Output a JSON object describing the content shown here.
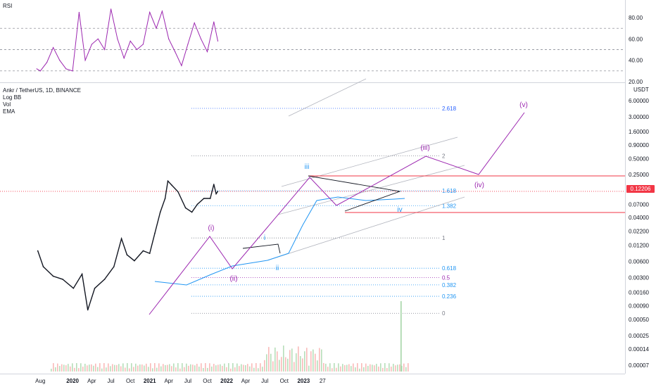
{
  "rsi_pane": {
    "title": "RSI",
    "ticks": [
      "80.00",
      "60.00",
      "40.00",
      "20.00"
    ]
  },
  "legend": {
    "symbol": "Ankr / TetherUS, 1D, BINANCE",
    "indicators": [
      "Log BB",
      "Vol",
      "EMA"
    ]
  },
  "price_axis": {
    "unit": "USDT",
    "current_price": "0.12206",
    "current_price_color": "#f23645"
  },
  "colors": {
    "fib_blue": "#2962ff",
    "fib_teal": "#089981",
    "wave_purple": "#9c27b0",
    "wave_blue": "#2196f3",
    "rsi_line": "#9c27b0",
    "resistance": "#f23645",
    "ema": "#2196f3"
  },
  "chart_data": [
    {
      "type": "line",
      "title": "RSI",
      "ylim": [
        20,
        100
      ],
      "levels": [
        70,
        50,
        30
      ],
      "x": [
        "2019-07-15",
        "2019-08",
        "2019-09",
        "2019-10",
        "2019-11",
        "2019-12",
        "2020-01",
        "2020-02",
        "2020-03",
        "2020-04",
        "2020-05",
        "2020-06",
        "2020-07",
        "2020-08",
        "2020-09",
        "2020-10",
        "2020-11",
        "2020-12",
        "2021-01",
        "2021-02",
        "2021-03",
        "2021-04",
        "2021-05",
        "2021-06",
        "2021-07",
        "2021-08",
        "2021-09",
        "2021-10",
        "2021-11",
        "2021-11-20"
      ],
      "values": [
        32,
        30,
        38,
        52,
        40,
        32,
        30,
        85,
        40,
        55,
        60,
        50,
        88,
        60,
        42,
        58,
        50,
        55,
        85,
        70,
        86,
        60,
        48,
        35,
        55,
        75,
        60,
        48,
        76,
        58
      ]
    },
    {
      "type": "line",
      "title": "Ankr / TetherUS, 1D, BINANCE",
      "scale": "log",
      "ylabel": "USDT",
      "y_ticks": [
        "6.00000",
        "3.00000",
        "1.60000",
        "0.90000",
        "0.50000",
        "0.25000",
        "0.12206",
        "0.07000",
        "0.04000",
        "0.02200",
        "0.01200",
        "0.00600",
        "0.00300",
        "0.00160",
        "0.00090",
        "0.00050",
        "0.00025",
        "0.00014",
        "0.00007"
      ],
      "x_ticks": [
        "Aug",
        "2020",
        "Apr",
        "Jul",
        "Oct",
        "2021",
        "Apr",
        "Jul",
        "Oct",
        "2022",
        "Apr",
        "Jul",
        "Oct",
        "2023",
        "27"
      ],
      "x": [
        "2019-07-20",
        "2019-08-15",
        "2019-10-01",
        "2019-11-15",
        "2020-01-05",
        "2020-02-15",
        "2020-03-13",
        "2020-04-15",
        "2020-06-01",
        "2020-07-15",
        "2020-08-20",
        "2020-09-15",
        "2020-10-20",
        "2020-12-01",
        "2021-01-01",
        "2021-01-25",
        "2021-02-20",
        "2021-03-15",
        "2021-03-28",
        "2021-04-15",
        "2021-05-15",
        "2021-06-20",
        "2021-07-20",
        "2021-08-15",
        "2021-09-15",
        "2021-10-15",
        "2021-11-01",
        "2021-11-12",
        "2021-11-20"
      ],
      "values": [
        0.0095,
        0.0048,
        0.0032,
        0.0028,
        0.0019,
        0.0035,
        0.00075,
        0.0019,
        0.0028,
        0.0048,
        0.016,
        0.008,
        0.0062,
        0.0095,
        0.0085,
        0.02,
        0.05,
        0.09,
        0.19,
        0.16,
        0.12,
        0.06,
        0.05,
        0.07,
        0.09,
        0.09,
        0.165,
        0.11,
        0.122
      ],
      "fib_levels": [
        "2.618",
        "2",
        "1.618",
        "1.382",
        "1",
        "0.618",
        "0.5",
        "0.382",
        "0.236",
        "0"
      ],
      "wave_labels_purple": [
        "(i)",
        "(ii)",
        "(iii)",
        "(iv)",
        "(v)"
      ],
      "wave_labels_blue": [
        "i",
        "ii",
        "iii",
        "iv"
      ]
    }
  ]
}
